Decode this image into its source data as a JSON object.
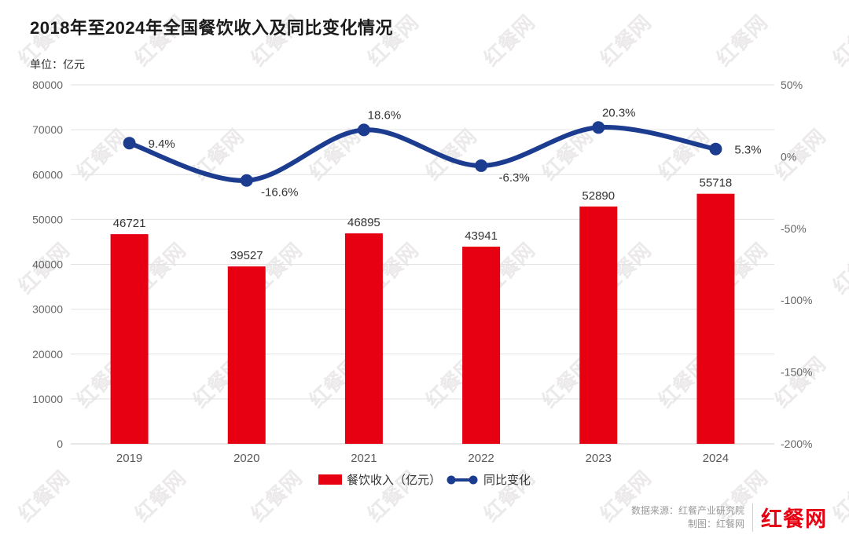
{
  "title": "2018年至2024年全国餐饮收入及同比变化情况",
  "unit_label": "单位：亿元",
  "watermark_text": "红餐网",
  "colors": {
    "bar": "#e60012",
    "line": "#1b3c8f",
    "grid": "#e2e2e2",
    "grid_bottom": "#cfcfcf",
    "axis_text": "#666666",
    "x_axis_text": "#595959",
    "data_label": "#333333",
    "watermark": "#ebe9e9"
  },
  "chart_data": {
    "type": "combo",
    "title": "2018年至2024年全国餐饮收入及同比变化情况",
    "unit": "亿元",
    "categories": [
      "2019",
      "2020",
      "2021",
      "2022",
      "2023",
      "2024"
    ],
    "series": [
      {
        "name": "餐饮收入（亿元）",
        "type": "bar",
        "axis": "left",
        "values": [
          46721,
          39527,
          46895,
          43941,
          52890,
          55718
        ]
      },
      {
        "name": "同比变化",
        "type": "line",
        "axis": "right",
        "values": [
          9.4,
          -16.6,
          18.6,
          -6.3,
          20.3,
          5.3
        ],
        "labels": [
          "9.4%",
          "-16.6%",
          "18.6%",
          "-6.3%",
          "20.3%",
          "5.3%"
        ],
        "label_positions": [
          "right",
          "below",
          "above",
          "below",
          "above",
          "right"
        ]
      }
    ],
    "left_axis": {
      "min": 0,
      "max": 80000,
      "step": 10000,
      "tick_labels": [
        "0",
        "10000",
        "20000",
        "30000",
        "40000",
        "50000",
        "60000",
        "70000",
        "80000"
      ]
    },
    "right_axis": {
      "min": -200,
      "max": 50,
      "step": 50,
      "tick_labels": [
        "-200%",
        "-150%",
        "-100%",
        "-50%",
        "0%",
        "50%"
      ]
    },
    "grid": true,
    "legend_position": "bottom"
  },
  "footer": {
    "source": "数据来源：红餐产业研究院",
    "credit": "制图：红餐网",
    "logo": "红餐网"
  }
}
